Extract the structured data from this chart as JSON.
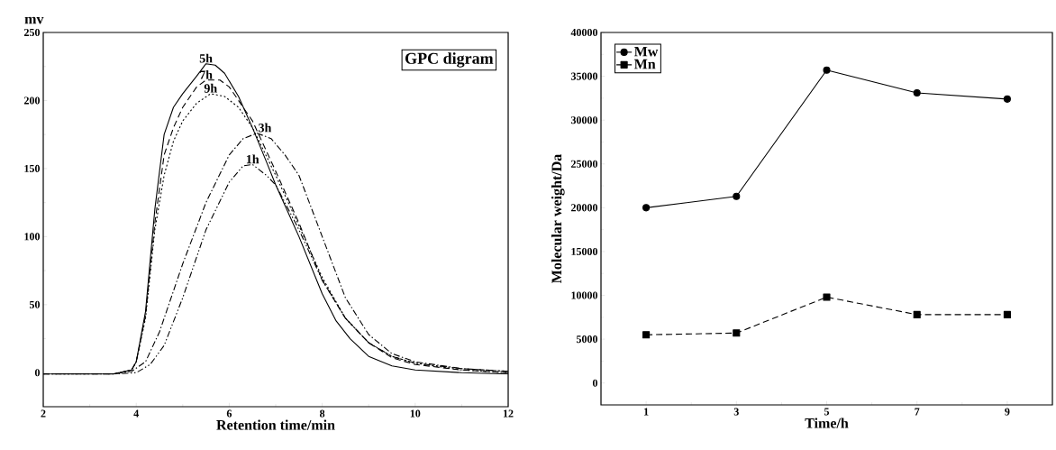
{
  "chart_data": [
    {
      "type": "line",
      "xlabel": "Retention time/min",
      "ylabel": "mv",
      "annotations": [
        "GPC digram"
      ],
      "xlim": [
        2,
        12
      ],
      "ylim": [
        -25,
        250
      ],
      "xticks": [
        2,
        4,
        6,
        8,
        10,
        12
      ],
      "yticks": [
        0,
        50,
        100,
        150,
        200,
        250
      ],
      "marker": "none",
      "series": [
        {
          "name": "5h",
          "color": "#000000",
          "line_style": "solid",
          "x": [
            2,
            3,
            3.5,
            3.9,
            4.0,
            4.2,
            4.4,
            4.6,
            4.8,
            5.0,
            5.3,
            5.5,
            5.7,
            5.9,
            6.2,
            6.5,
            6.8,
            7.0,
            7.5,
            8.0,
            8.3,
            8.6,
            9.0,
            9.5,
            10,
            11,
            12
          ],
          "values": [
            -1,
            -1,
            -1,
            2,
            8,
            45,
            120,
            175,
            195,
            205,
            218,
            227,
            226,
            220,
            203,
            180,
            155,
            138,
            100,
            58,
            38,
            25,
            12,
            5,
            2,
            0,
            -1
          ]
        },
        {
          "name": "7h",
          "color": "#000000",
          "line_style": "dashed",
          "x": [
            2,
            3,
            3.5,
            3.9,
            4.0,
            4.2,
            4.4,
            4.6,
            4.8,
            5.0,
            5.3,
            5.5,
            5.8,
            6.0,
            6.5,
            7.0,
            7.5,
            8.0,
            8.5,
            9.0,
            9.5,
            10,
            11,
            12
          ],
          "values": [
            -1,
            -1,
            -1,
            2,
            8,
            42,
            110,
            160,
            180,
            195,
            210,
            215,
            215,
            210,
            185,
            148,
            110,
            68,
            40,
            22,
            11,
            6,
            2,
            0
          ]
        },
        {
          "name": "9h",
          "color": "#000000",
          "line_style": "dotted",
          "x": [
            2,
            3,
            3.5,
            3.9,
            4.0,
            4.2,
            4.4,
            4.6,
            4.8,
            5.0,
            5.3,
            5.6,
            5.9,
            6.2,
            6.5,
            7.0,
            7.5,
            8.0,
            8.5,
            9.0,
            9.5,
            10,
            11,
            12
          ],
          "values": [
            -1,
            -1,
            -1,
            2,
            8,
            40,
            105,
            145,
            170,
            185,
            198,
            205,
            203,
            195,
            180,
            145,
            108,
            70,
            40,
            22,
            12,
            7,
            2,
            0
          ]
        },
        {
          "name": "3h",
          "color": "#000000",
          "line_style": "dashdot",
          "x": [
            2,
            3,
            3.5,
            3.9,
            4.2,
            4.5,
            4.8,
            5.0,
            5.5,
            6.0,
            6.3,
            6.6,
            6.9,
            7.2,
            7.5,
            8.0,
            8.5,
            9.0,
            9.5,
            10,
            11,
            12
          ],
          "values": [
            -1,
            -1,
            -1,
            1,
            8,
            30,
            60,
            80,
            125,
            160,
            172,
            176,
            172,
            160,
            145,
            100,
            55,
            28,
            14,
            8,
            3,
            1
          ]
        },
        {
          "name": "1h",
          "color": "#000000",
          "line_style": "dashdotdot",
          "x": [
            2,
            3,
            3.5,
            4.0,
            4.3,
            4.6,
            5.0,
            5.5,
            6.0,
            6.3,
            6.5,
            6.8,
            7.0,
            7.5,
            8.0,
            8.5,
            9.0,
            9.5,
            10,
            11,
            12
          ],
          "values": [
            -1,
            -1,
            -1,
            0,
            6,
            20,
            55,
            105,
            140,
            152,
            153,
            145,
            138,
            105,
            68,
            40,
            22,
            12,
            7,
            3,
            1
          ]
        }
      ]
    },
    {
      "type": "line",
      "xlabel": "Time/h",
      "ylabel": "Molecular weight/Da",
      "x": [
        1,
        3,
        5,
        7,
        9
      ],
      "xlim": [
        0,
        10
      ],
      "ylim": [
        -2500,
        40000
      ],
      "xticks": [
        1,
        3,
        5,
        7,
        9
      ],
      "yticks": [
        0,
        5000,
        10000,
        15000,
        20000,
        25000,
        30000,
        35000,
        40000
      ],
      "legend": "top left",
      "series": [
        {
          "name": "Mw",
          "color": "#000000",
          "line_style": "solid",
          "marker": "circle",
          "values": [
            20000,
            21300,
            35700,
            33100,
            32400
          ]
        },
        {
          "name": "Mn",
          "color": "#000000",
          "line_style": "dashed",
          "marker": "square",
          "values": [
            5500,
            5700,
            9800,
            7800,
            7800
          ]
        }
      ]
    }
  ]
}
